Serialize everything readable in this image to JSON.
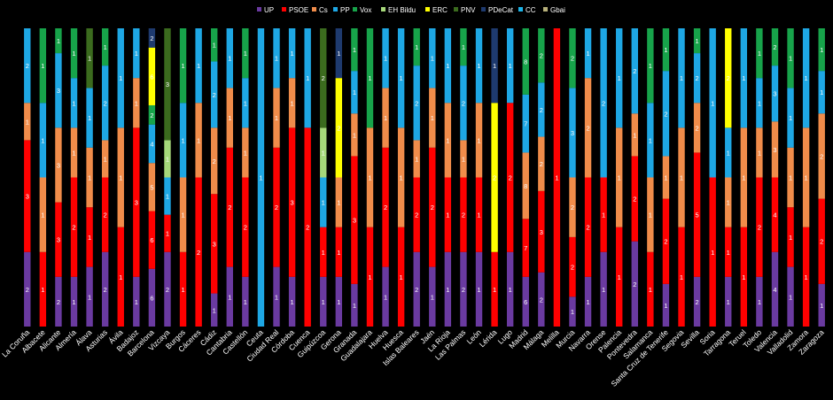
{
  "chart_data": {
    "type": "bar",
    "stacked": true,
    "legend_position": "top",
    "grid": false,
    "series": [
      {
        "name": "UP",
        "color": "#6a3aa0"
      },
      {
        "name": "PSOE",
        "color": "#ff0000"
      },
      {
        "name": "Cs",
        "color": "#f08c4a"
      },
      {
        "name": "PP",
        "color": "#1ea7e4"
      },
      {
        "name": "Vox",
        "color": "#17a34a"
      },
      {
        "name": "EH Bildu",
        "color": "#a6d87a"
      },
      {
        "name": "ERC",
        "color": "#ffff00"
      },
      {
        "name": "PNV",
        "color": "#3b6b1e"
      },
      {
        "name": "PDeCat",
        "color": "#1e3a6e"
      },
      {
        "name": "CC",
        "color": "#1cb4e8"
      },
      {
        "name": "Gbai",
        "color": "#b7b07a"
      }
    ],
    "categories": [
      {
        "name": "La Coruña",
        "segs": [
          [
            "UP",
            2
          ],
          [
            "PSOE",
            3
          ],
          [
            "Cs",
            1
          ],
          [
            "PP",
            2
          ]
        ]
      },
      {
        "name": "Albacete",
        "segs": [
          [
            "PSOE",
            1
          ],
          [
            "Cs",
            1
          ],
          [
            "PP",
            1
          ],
          [
            "Vox",
            1
          ]
        ]
      },
      {
        "name": "Alicante",
        "segs": [
          [
            "UP",
            2
          ],
          [
            "PSOE",
            3
          ],
          [
            "Cs",
            3
          ],
          [
            "PP",
            3
          ],
          [
            "Vox",
            1
          ]
        ]
      },
      {
        "name": "Almería",
        "segs": [
          [
            "UP",
            1
          ],
          [
            "PSOE",
            2
          ],
          [
            "Cs",
            1
          ],
          [
            "PP",
            1
          ],
          [
            "Vox",
            1
          ]
        ]
      },
      {
        "name": "Álava",
        "segs": [
          [
            "UP",
            1
          ],
          [
            "PSOE",
            1
          ],
          [
            "Cs",
            1
          ],
          [
            "PP",
            1
          ],
          [
            "PNV",
            1
          ]
        ]
      },
      {
        "name": "Asturias",
        "segs": [
          [
            "UP",
            2
          ],
          [
            "PSOE",
            2
          ],
          [
            "Cs",
            1
          ],
          [
            "PP",
            2
          ],
          [
            "Vox",
            1
          ]
        ]
      },
      {
        "name": "Ávila",
        "segs": [
          [
            "PSOE",
            1
          ],
          [
            "Cs",
            1
          ],
          [
            "PP",
            1
          ]
        ]
      },
      {
        "name": "Badajoz",
        "segs": [
          [
            "UP",
            1
          ],
          [
            "PSOE",
            3
          ],
          [
            "Cs",
            1
          ],
          [
            "PP",
            1
          ]
        ]
      },
      {
        "name": "Barcelona",
        "segs": [
          [
            "UP",
            6
          ],
          [
            "PSOE",
            6
          ],
          [
            "Cs",
            5
          ],
          [
            "PP",
            4
          ],
          [
            "Vox",
            2
          ],
          [
            "ERC",
            6
          ],
          [
            "PDeCat",
            2
          ]
        ]
      },
      {
        "name": "Vizcaya",
        "segs": [
          [
            "UP",
            2
          ],
          [
            "PSOE",
            1
          ],
          [
            "PP",
            1
          ],
          [
            "EH Bildu",
            1
          ],
          [
            "PNV",
            3
          ]
        ]
      },
      {
        "name": "Burgos",
        "segs": [
          [
            "PSOE",
            1
          ],
          [
            "Cs",
            1
          ],
          [
            "PP",
            1
          ],
          [
            "Vox",
            1
          ]
        ]
      },
      {
        "name": "Cáceres",
        "segs": [
          [
            "PSOE",
            2
          ],
          [
            "Cs",
            1
          ],
          [
            "PP",
            1
          ]
        ]
      },
      {
        "name": "Cádiz",
        "segs": [
          [
            "UP",
            1
          ],
          [
            "PSOE",
            3
          ],
          [
            "Cs",
            2
          ],
          [
            "PP",
            2
          ],
          [
            "Vox",
            1
          ]
        ]
      },
      {
        "name": "Cantabria",
        "segs": [
          [
            "UP",
            1
          ],
          [
            "PSOE",
            2
          ],
          [
            "Cs",
            1
          ],
          [
            "PP",
            1
          ]
        ]
      },
      {
        "name": "Castellón",
        "segs": [
          [
            "UP",
            1
          ],
          [
            "PSOE",
            2
          ],
          [
            "Cs",
            1
          ],
          [
            "PP",
            1
          ],
          [
            "Vox",
            1
          ]
        ]
      },
      {
        "name": "Ceuta",
        "segs": [
          [
            "PP",
            1
          ]
        ]
      },
      {
        "name": "Ciudad Real",
        "segs": [
          [
            "UP",
            1
          ],
          [
            "PSOE",
            2
          ],
          [
            "Cs",
            1
          ],
          [
            "PP",
            1
          ]
        ]
      },
      {
        "name": "Córdoba",
        "segs": [
          [
            "UP",
            1
          ],
          [
            "PSOE",
            3
          ],
          [
            "Cs",
            1
          ],
          [
            "PP",
            1
          ]
        ]
      },
      {
        "name": "Cuenca",
        "segs": [
          [
            "PSOE",
            2
          ],
          [
            "PP",
            1
          ]
        ]
      },
      {
        "name": "Guipúzcoa",
        "segs": [
          [
            "UP",
            1
          ],
          [
            "PSOE",
            1
          ],
          [
            "PP",
            1
          ],
          [
            "EH Bildu",
            1
          ],
          [
            "PNV",
            2
          ]
        ]
      },
      {
        "name": "Gerona",
        "segs": [
          [
            "UP",
            1
          ],
          [
            "PSOE",
            1
          ],
          [
            "Cs",
            1
          ],
          [
            "ERC",
            2
          ],
          [
            "PDeCat",
            1
          ]
        ]
      },
      {
        "name": "Granada",
        "segs": [
          [
            "UP",
            1
          ],
          [
            "PSOE",
            3
          ],
          [
            "Cs",
            1
          ],
          [
            "PP",
            1
          ],
          [
            "Vox",
            1
          ]
        ]
      },
      {
        "name": "Guadalajara",
        "segs": [
          [
            "PSOE",
            1
          ],
          [
            "Cs",
            1
          ],
          [
            "Vox",
            1
          ]
        ]
      },
      {
        "name": "Huelva",
        "segs": [
          [
            "UP",
            1
          ],
          [
            "PSOE",
            2
          ],
          [
            "Cs",
            1
          ],
          [
            "PP",
            1
          ]
        ]
      },
      {
        "name": "Huesca",
        "segs": [
          [
            "PSOE",
            1
          ],
          [
            "Cs",
            1
          ],
          [
            "PP",
            1
          ]
        ]
      },
      {
        "name": "Islas Baleares",
        "segs": [
          [
            "UP",
            2
          ],
          [
            "PSOE",
            2
          ],
          [
            "Cs",
            1
          ],
          [
            "PP",
            2
          ],
          [
            "Vox",
            1
          ]
        ]
      },
      {
        "name": "Jaén",
        "segs": [
          [
            "UP",
            1
          ],
          [
            "PSOE",
            2
          ],
          [
            "Cs",
            1
          ],
          [
            "PP",
            1
          ]
        ]
      },
      {
        "name": "La Rioja",
        "segs": [
          [
            "UP",
            1
          ],
          [
            "PSOE",
            1
          ],
          [
            "Cs",
            1
          ],
          [
            "PP",
            1
          ]
        ]
      },
      {
        "name": "Las Palmas",
        "segs": [
          [
            "UP",
            2
          ],
          [
            "PSOE",
            2
          ],
          [
            "Cs",
            1
          ],
          [
            "PP",
            2
          ],
          [
            "Vox",
            1
          ]
        ]
      },
      {
        "name": "León",
        "segs": [
          [
            "UP",
            1
          ],
          [
            "PSOE",
            1
          ],
          [
            "Cs",
            1
          ],
          [
            "PP",
            1
          ]
        ]
      },
      {
        "name": "Lérida",
        "segs": [
          [
            "PSOE",
            1
          ],
          [
            "ERC",
            2
          ],
          [
            "PDeCat",
            1
          ]
        ]
      },
      {
        "name": "Lugo",
        "segs": [
          [
            "UP",
            1
          ],
          [
            "PSOE",
            2
          ],
          [
            "PP",
            1
          ]
        ]
      },
      {
        "name": "Madrid",
        "segs": [
          [
            "UP",
            6
          ],
          [
            "PSOE",
            7
          ],
          [
            "Cs",
            8
          ],
          [
            "PP",
            7
          ],
          [
            "Vox",
            8
          ]
        ]
      },
      {
        "name": "Málaga",
        "segs": [
          [
            "UP",
            2
          ],
          [
            "PSOE",
            3
          ],
          [
            "Cs",
            2
          ],
          [
            "PP",
            2
          ],
          [
            "Vox",
            2
          ]
        ]
      },
      {
        "name": "Melilla",
        "segs": [
          [
            "PSOE",
            1
          ]
        ]
      },
      {
        "name": "Murcia",
        "segs": [
          [
            "UP",
            1
          ],
          [
            "PSOE",
            2
          ],
          [
            "Cs",
            2
          ],
          [
            "PP",
            3
          ],
          [
            "Vox",
            2
          ]
        ]
      },
      {
        "name": "Navarra",
        "segs": [
          [
            "UP",
            1
          ],
          [
            "PSOE",
            2
          ],
          [
            "Cs",
            2
          ],
          [
            "PP",
            1
          ]
        ]
      },
      {
        "name": "Orense",
        "segs": [
          [
            "UP",
            1
          ],
          [
            "PSOE",
            1
          ],
          [
            "PP",
            2
          ]
        ]
      },
      {
        "name": "Palencia",
        "segs": [
          [
            "PSOE",
            1
          ],
          [
            "Cs",
            1
          ],
          [
            "PP",
            1
          ]
        ]
      },
      {
        "name": "Pontevedra",
        "segs": [
          [
            "UP",
            2
          ],
          [
            "PSOE",
            2
          ],
          [
            "Cs",
            1
          ],
          [
            "PP",
            2
          ]
        ]
      },
      {
        "name": "Salamanca",
        "segs": [
          [
            "PSOE",
            1
          ],
          [
            "Cs",
            1
          ],
          [
            "PP",
            1
          ],
          [
            "Vox",
            1
          ]
        ]
      },
      {
        "name": "Santa Cruz de Tenerife",
        "segs": [
          [
            "UP",
            1
          ],
          [
            "PSOE",
            2
          ],
          [
            "Cs",
            1
          ],
          [
            "PP",
            2
          ],
          [
            "Vox",
            1
          ]
        ]
      },
      {
        "name": "Segovia",
        "segs": [
          [
            "PSOE",
            1
          ],
          [
            "Cs",
            1
          ],
          [
            "PP",
            1
          ]
        ]
      },
      {
        "name": "Sevilla",
        "segs": [
          [
            "UP",
            2
          ],
          [
            "PSOE",
            5
          ],
          [
            "Cs",
            2
          ],
          [
            "PP",
            2
          ],
          [
            "Vox",
            1
          ]
        ]
      },
      {
        "name": "Soria",
        "segs": [
          [
            "PSOE",
            1
          ],
          [
            "PP",
            1
          ]
        ]
      },
      {
        "name": "Tarragona",
        "segs": [
          [
            "UP",
            1
          ],
          [
            "PSOE",
            1
          ],
          [
            "Cs",
            1
          ],
          [
            "PP",
            1
          ],
          [
            "ERC",
            2
          ]
        ]
      },
      {
        "name": "Teruel",
        "segs": [
          [
            "PSOE",
            1
          ],
          [
            "Cs",
            1
          ],
          [
            "PP",
            1
          ]
        ]
      },
      {
        "name": "Toledo",
        "segs": [
          [
            "UP",
            1
          ],
          [
            "PSOE",
            2
          ],
          [
            "Cs",
            1
          ],
          [
            "PP",
            1
          ],
          [
            "Vox",
            1
          ]
        ]
      },
      {
        "name": "Valencia",
        "segs": [
          [
            "UP",
            4
          ],
          [
            "PSOE",
            4
          ],
          [
            "Cs",
            3
          ],
          [
            "PP",
            3
          ],
          [
            "Vox",
            2
          ]
        ]
      },
      {
        "name": "Valladolid",
        "segs": [
          [
            "UP",
            1
          ],
          [
            "PSOE",
            1
          ],
          [
            "Cs",
            1
          ],
          [
            "PP",
            1
          ],
          [
            "Vox",
            1
          ]
        ]
      },
      {
        "name": "Zamora",
        "segs": [
          [
            "PSOE",
            1
          ],
          [
            "Cs",
            1
          ],
          [
            "PP",
            1
          ]
        ]
      },
      {
        "name": "Zaragoza",
        "segs": [
          [
            "UP",
            1
          ],
          [
            "PSOE",
            2
          ],
          [
            "Cs",
            2
          ],
          [
            "PP",
            1
          ],
          [
            "Vox",
            1
          ]
        ]
      }
    ]
  }
}
